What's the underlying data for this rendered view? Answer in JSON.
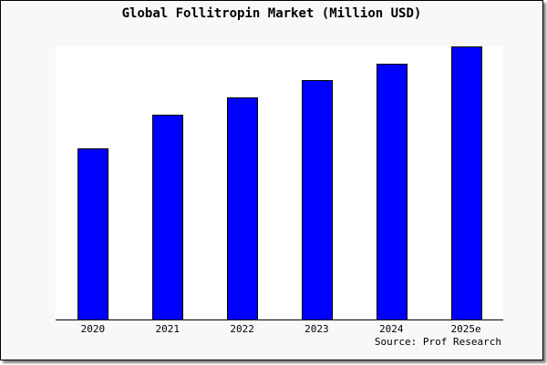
{
  "chart_data": {
    "type": "bar",
    "title": "Global Follitropin Market (Million USD)",
    "categories": [
      "2020",
      "2021",
      "2022",
      "2023",
      "2024",
      "2025e"
    ],
    "values": [
      62.7,
      75,
      81.3,
      87.7,
      93.7,
      100
    ],
    "xlabel": "",
    "ylabel": "",
    "ylim": [
      0,
      100
    ],
    "grid": false,
    "bar_color": "#0000ff",
    "annotation": "Source: Prof Research"
  }
}
